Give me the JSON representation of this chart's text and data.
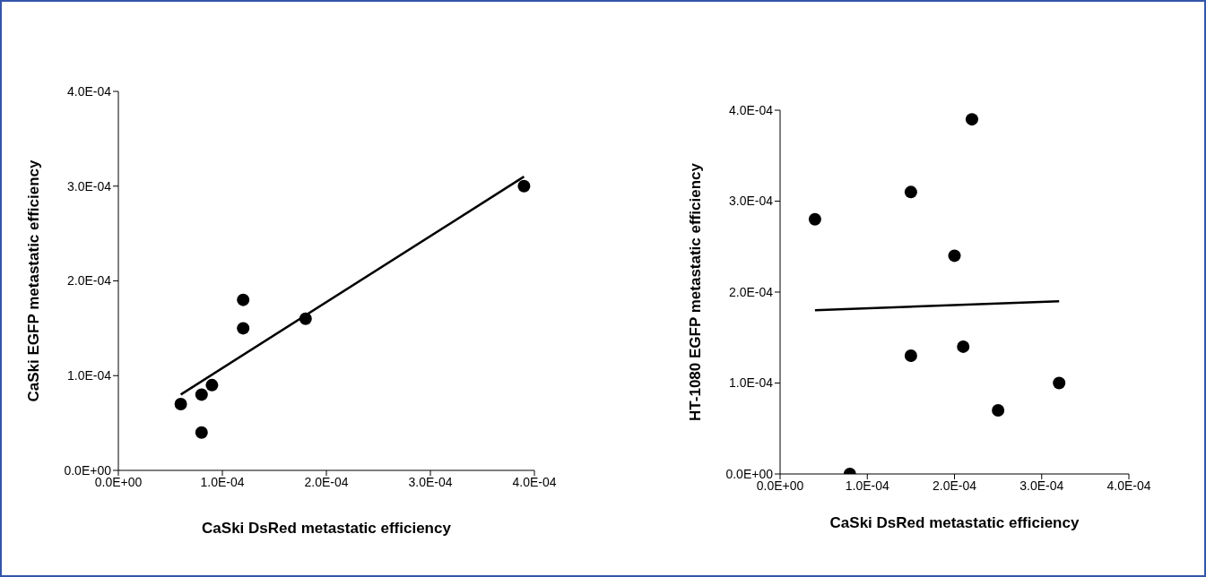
{
  "chart_data": [
    {
      "type": "scatter",
      "xlabel": "CaSki DsRed metastatic efficiency",
      "ylabel": "CaSki EGFP metastatic efficiency",
      "grid": false,
      "legend": false,
      "xlim": [
        0,
        0.0004
      ],
      "ylim": [
        0,
        0.0004
      ],
      "xticks": [
        {
          "value": 0,
          "label": "0.0E+00"
        },
        {
          "value": 0.0001,
          "label": "1.0E-04"
        },
        {
          "value": 0.0002,
          "label": "2.0E-04"
        },
        {
          "value": 0.0003,
          "label": "3.0E-04"
        },
        {
          "value": 0.0004,
          "label": "4.0E-04"
        }
      ],
      "yticks": [
        {
          "value": 0,
          "label": "0.0E+00"
        },
        {
          "value": 0.0001,
          "label": "1.0E-04"
        },
        {
          "value": 0.0002,
          "label": "2.0E-04"
        },
        {
          "value": 0.0003,
          "label": "3.0E-04"
        },
        {
          "value": 0.0004,
          "label": "4.0E-04"
        }
      ],
      "series": [
        {
          "marker": "circle",
          "color": "#000000",
          "x": [
            6e-05,
            8e-05,
            8e-05,
            9e-05,
            0.00012,
            0.00012,
            0.00018,
            0.00039
          ],
          "values": [
            7e-05,
            4e-05,
            8e-05,
            9e-05,
            0.00018,
            0.00015,
            0.00016,
            0.0003
          ]
        },
        {
          "type": "line",
          "marker": "none",
          "color": "#000000",
          "x": [
            6e-05,
            0.00039
          ],
          "values": [
            8e-05,
            0.00031
          ]
        }
      ]
    },
    {
      "type": "scatter",
      "xlabel": "CaSki DsRed metastatic efficiency",
      "ylabel": "HT-1080 EGFP metastatic efficiency",
      "grid": false,
      "legend": false,
      "xlim": [
        0,
        0.0004
      ],
      "ylim": [
        0,
        0.0004
      ],
      "xticks": [
        {
          "value": 0,
          "label": "0.0E+00"
        },
        {
          "value": 0.0001,
          "label": "1.0E-04"
        },
        {
          "value": 0.0002,
          "label": "2.0E-04"
        },
        {
          "value": 0.0003,
          "label": "3.0E-04"
        },
        {
          "value": 0.0004,
          "label": "4.0E-04"
        }
      ],
      "yticks": [
        {
          "value": 0,
          "label": "0.0E+00"
        },
        {
          "value": 0.0001,
          "label": "1.0E-04"
        },
        {
          "value": 0.0002,
          "label": "2.0E-04"
        },
        {
          "value": 0.0003,
          "label": "3.0E-04"
        },
        {
          "value": 0.0004,
          "label": "4.0E-04"
        }
      ],
      "series": [
        {
          "marker": "circle",
          "color": "#000000",
          "x": [
            4e-05,
            8e-05,
            0.00015,
            0.00015,
            0.0002,
            0.00021,
            0.00022,
            0.00025,
            0.00032
          ],
          "values": [
            0.00028,
            0,
            0.00031,
            0.00013,
            0.00024,
            0.00014,
            0.00039,
            7e-05,
            0.0001
          ]
        },
        {
          "type": "line",
          "marker": "none",
          "color": "#000000",
          "x": [
            4e-05,
            0.00032
          ],
          "values": [
            0.00018,
            0.00019
          ]
        }
      ]
    }
  ]
}
